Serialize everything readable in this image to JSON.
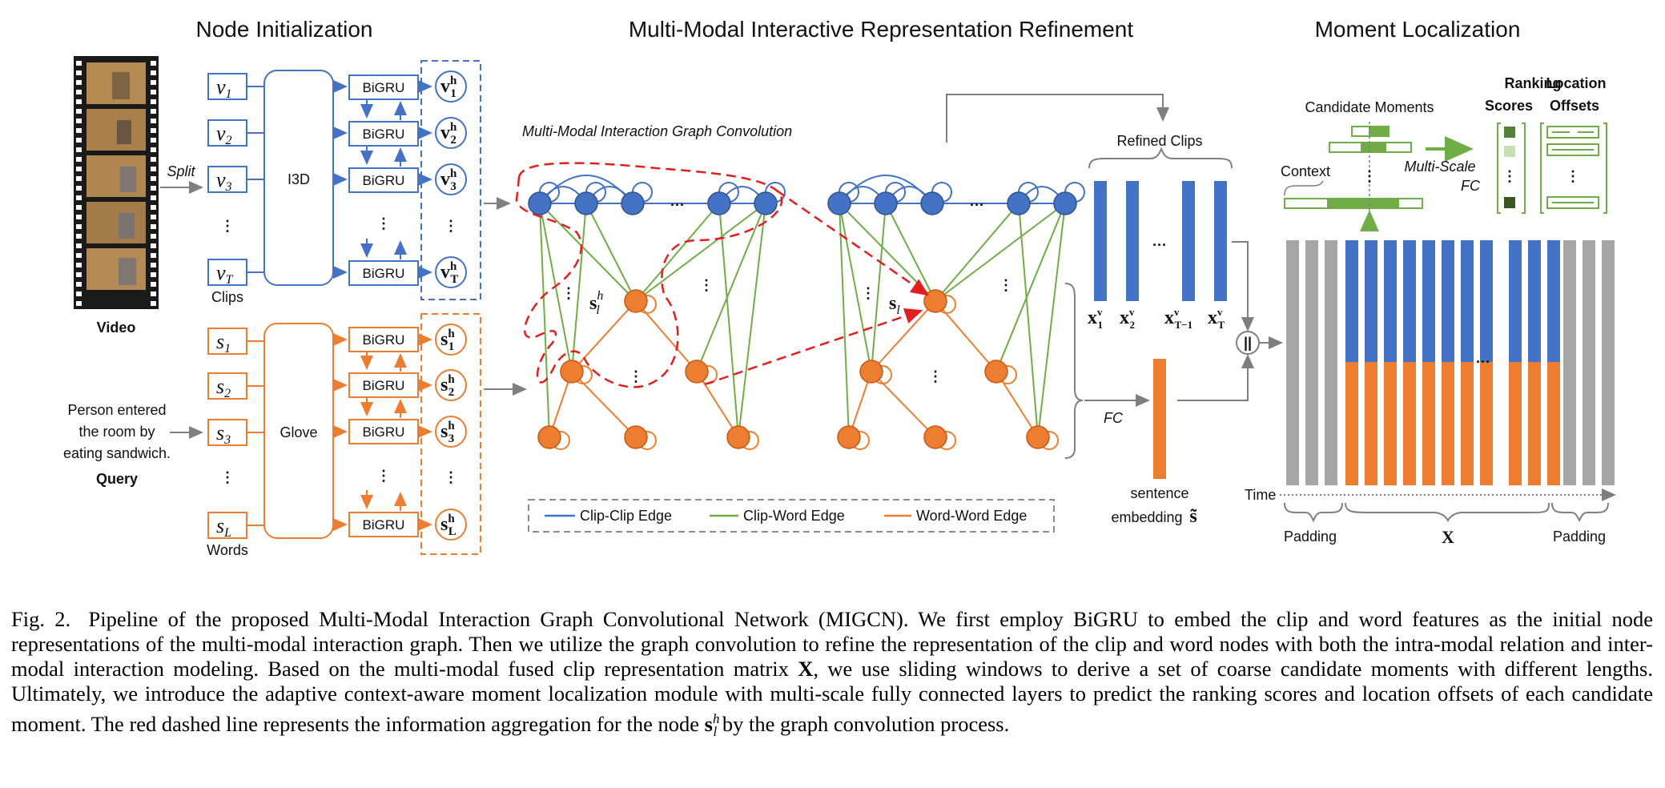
{
  "sections": {
    "node_init": "Node Initialization",
    "refine": "Multi-Modal Interactive Representation Refinement",
    "localization": "Moment Localization"
  },
  "left": {
    "split": "Split",
    "video": "Video",
    "i3d": "I3D",
    "glove": "Glove",
    "clips": "Clips",
    "words": "Words",
    "query_text": [
      "Person entered",
      "the room by",
      "eating sandwich."
    ],
    "query": "Query",
    "clip_inputs": [
      "v",
      "v",
      "v",
      "v"
    ],
    "clip_subs": [
      "1",
      "2",
      "3",
      "T"
    ],
    "word_inputs": [
      "s",
      "s",
      "s",
      "s"
    ],
    "word_subs": [
      "1",
      "2",
      "3",
      "L"
    ],
    "bigru": "BiGRU",
    "vdots": "⋮"
  },
  "graph": {
    "title": "Multi-Modal Interaction Graph Convolution",
    "node_slh": "s",
    "node_sl": "s",
    "ellipsis": "···",
    "vdots": "⋮",
    "legend": {
      "clip_clip": "Clip-Clip Edge",
      "clip_word": "Clip-Word Edge",
      "word_word": "Word-Word Edge"
    }
  },
  "refined": {
    "title": "Refined Clips",
    "fc": "FC",
    "sentence": "sentence",
    "embedding": "embedding",
    "ellipsis": "···",
    "concat": "||"
  },
  "moment": {
    "candidate": "Candidate Moments",
    "context": "Context",
    "ranking": "Ranking",
    "scores": "Scores",
    "location": "Location",
    "offsets": "Offsets",
    "multiscale": "Multi-Scale",
    "fc": "FC",
    "time": "Time",
    "padding_left": "Padding",
    "padding_right": "Padding",
    "x": "X",
    "ellipsis": "···"
  },
  "caption": {
    "label": "Fig. 2.",
    "text_before": "Pipeline of the proposed Multi-Modal Interaction Graph Convolutional Network (MIGCN). We first employ BiGRU to embed the clip and word features as the initial node representations of the multi-modal interaction graph. Then we utilize the graph convolution to refine the representation of the clip and word nodes with both the intra-modal relation and inter-modal interaction modeling. Based on the multi-modal fused clip representation matrix",
    "symbol_x": "X",
    "text_middle": ", we use sliding windows to derive a set of coarse candidate moments with different lengths. Ultimately, we introduce the adaptive context-aware moment localization module with multi-scale fully connected layers to predict the ranking scores and location offsets of each candidate moment. The red dashed line represents the information aggregation for the node",
    "symbol_s": "s",
    "text_after": "by the graph convolution process."
  },
  "colors": {
    "blue": "#4472c4",
    "orange": "#ed7d31",
    "green": "#70ad47",
    "gray": "#a6a6a6",
    "red": "#e02020"
  }
}
